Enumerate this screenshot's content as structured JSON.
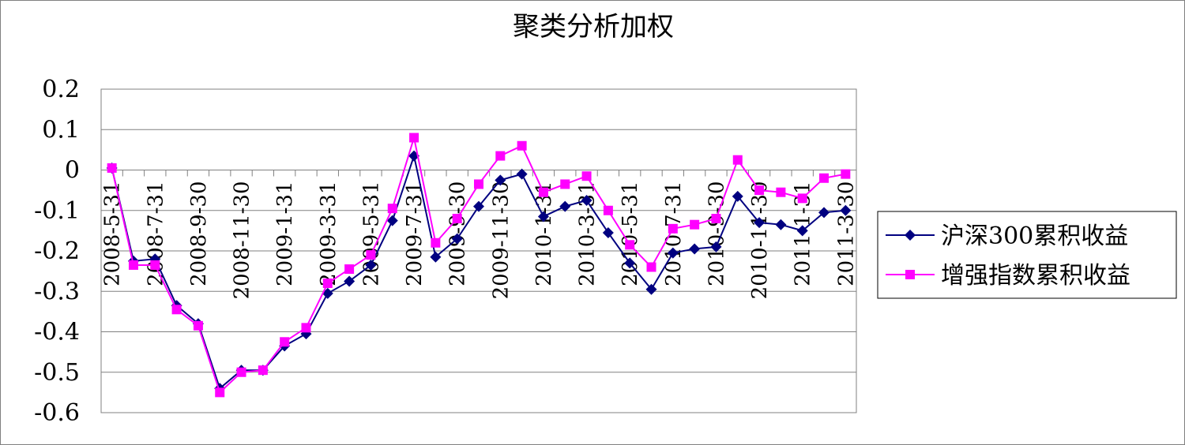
{
  "chart_data": {
    "type": "line",
    "title": "聚类分析加权",
    "xlabel": "",
    "ylabel": "",
    "ylim": [
      -0.6,
      0.2
    ],
    "yticks": [
      "0.2",
      "0.1",
      "0",
      "-0.1",
      "-0.2",
      "-0.3",
      "-0.4",
      "-0.5",
      "-0.6"
    ],
    "grid": true,
    "legend_position": "right",
    "colors": {
      "hs300": "#000080",
      "enhanced": "#FF00FF"
    },
    "x_tick_labels": [
      "2008-5-31",
      "2008-7-31",
      "2008-9-30",
      "2008-11-30",
      "2009-1-31",
      "2009-3-31",
      "2009-5-31",
      "2009-7-31",
      "2009-9-30",
      "2009-11-30",
      "2010-1-31",
      "2010-3-31",
      "2010-5-31",
      "2010-7-31",
      "2010-9-30",
      "2010-11-30",
      "2011-1-31",
      "2011-3-30"
    ],
    "series": [
      {
        "name": "沪深300累积收益",
        "marker": "diamond",
        "values": [
          0.005,
          -0.225,
          -0.22,
          -0.335,
          -0.38,
          -0.54,
          -0.495,
          -0.495,
          -0.435,
          -0.405,
          -0.305,
          -0.275,
          -0.235,
          -0.125,
          0.035,
          -0.215,
          -0.17,
          -0.09,
          -0.025,
          -0.01,
          -0.115,
          -0.09,
          -0.075,
          -0.155,
          -0.23,
          -0.295,
          -0.205,
          -0.195,
          -0.19,
          -0.065,
          -0.13,
          -0.135,
          -0.15,
          -0.105,
          -0.1
        ]
      },
      {
        "name": "增强指数累积收益",
        "marker": "square",
        "values": [
          0.005,
          -0.235,
          -0.235,
          -0.345,
          -0.385,
          -0.55,
          -0.5,
          -0.495,
          -0.425,
          -0.39,
          -0.28,
          -0.245,
          -0.21,
          -0.095,
          0.08,
          -0.18,
          -0.12,
          -0.035,
          0.035,
          0.06,
          -0.055,
          -0.035,
          -0.015,
          -0.1,
          -0.185,
          -0.24,
          -0.145,
          -0.135,
          -0.12,
          0.025,
          -0.05,
          -0.055,
          -0.07,
          -0.02,
          -0.01
        ]
      }
    ]
  }
}
